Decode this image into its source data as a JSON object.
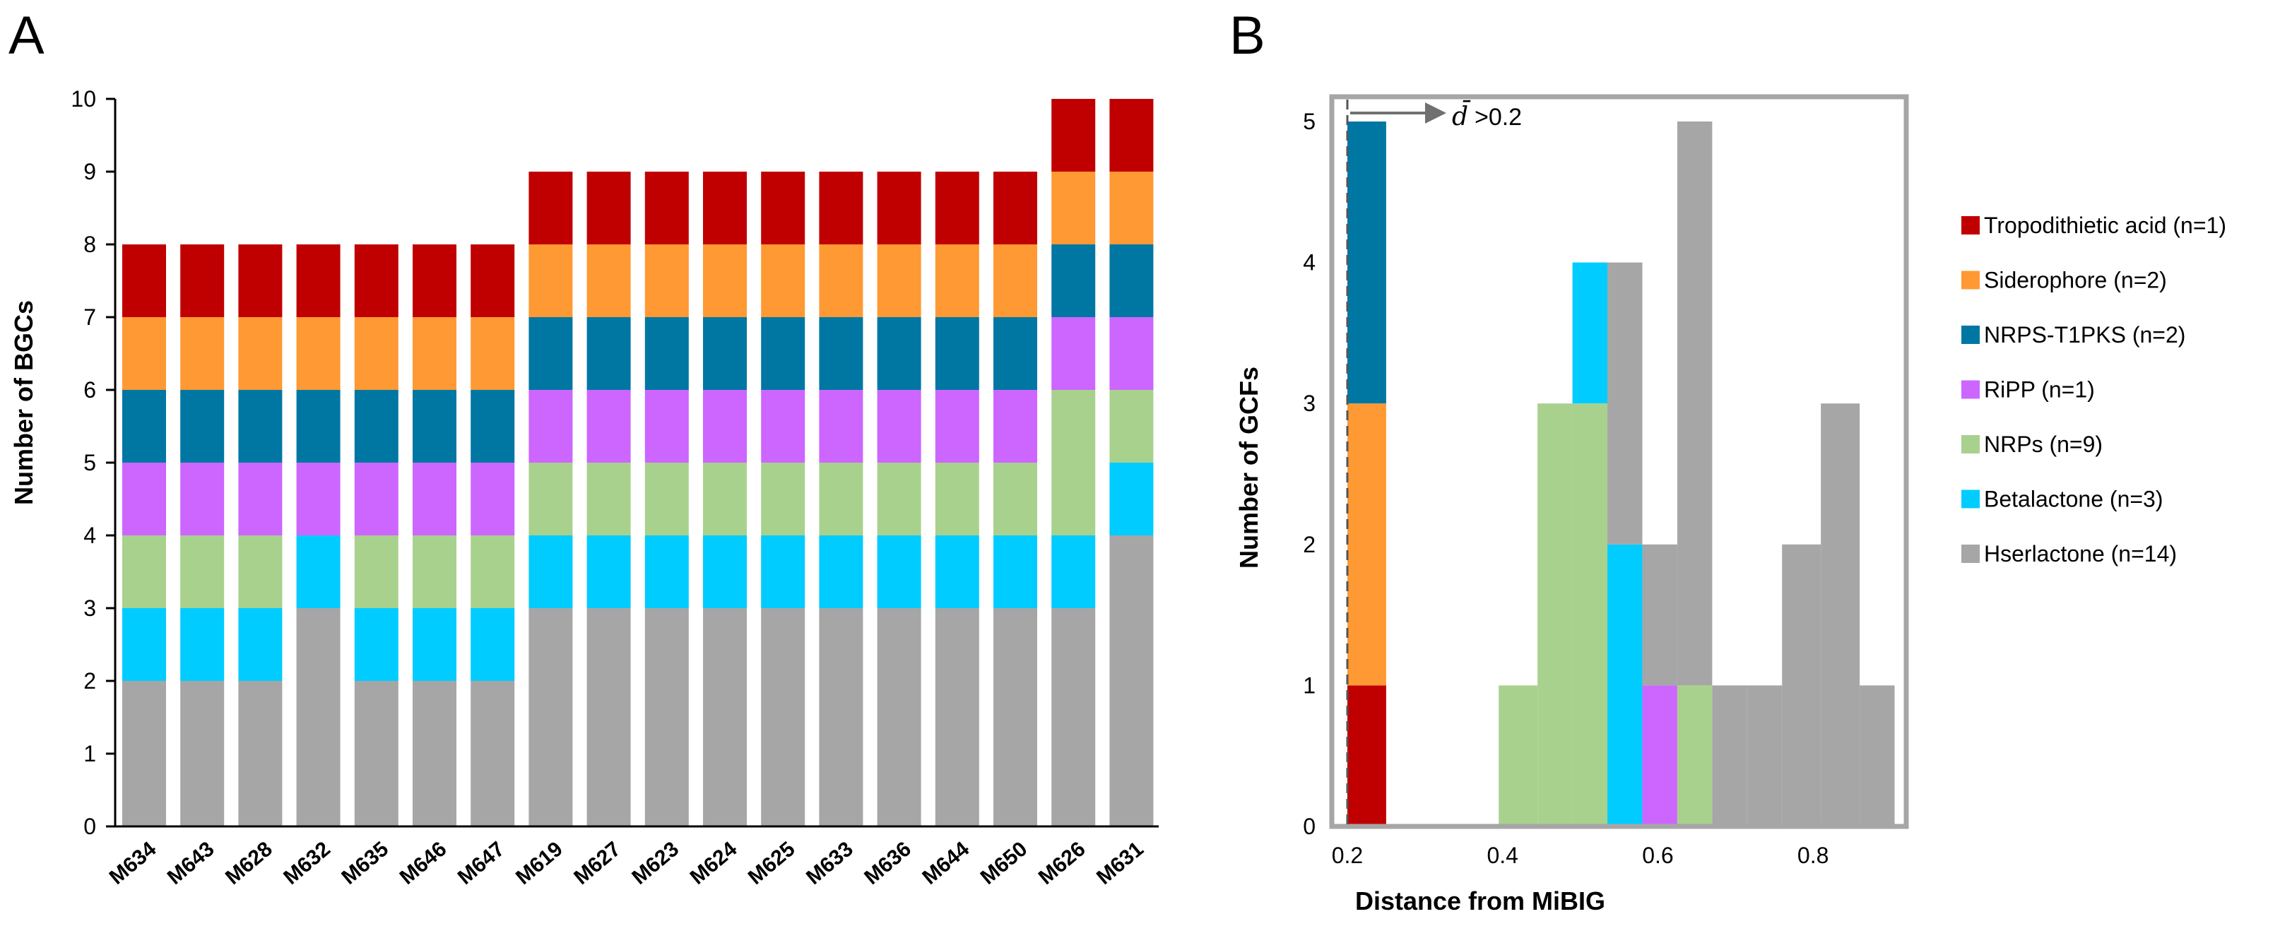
{
  "panels": {
    "a": "A",
    "b": "B"
  },
  "colors": {
    "Tropodithietic acid": "#c00000",
    "Siderophore": "#ff9933",
    "NRPS-T1PKS": "#0077a3",
    "RiPP": "#cc66ff",
    "NRPs": "#a9d18e",
    "Betalactone": "#00ccff",
    "Hserlactone": "#a6a6a6"
  },
  "legend": [
    {
      "key": "Tropodithietic acid",
      "label": "Tropodithietic acid (n=1)"
    },
    {
      "key": "Siderophore",
      "label": "Siderophore (n=2)"
    },
    {
      "key": "NRPS-T1PKS",
      "label": "NRPS-T1PKS (n=2)"
    },
    {
      "key": "RiPP",
      "label": "RiPP (n=1)"
    },
    {
      "key": "NRPs",
      "label": "NRPs (n=9)"
    },
    {
      "key": "Betalactone",
      "label": "Betalactone (n=3)"
    },
    {
      "key": "Hserlactone",
      "label": "Hserlactone (n=14)"
    }
  ],
  "chart_data": [
    {
      "type": "bar",
      "stacked": true,
      "panel": "A",
      "title": "",
      "xlabel": "",
      "ylabel": "Number of BGCs",
      "ylim": [
        0,
        10
      ],
      "yticks": [
        0,
        1,
        2,
        3,
        4,
        5,
        6,
        7,
        8,
        9,
        10
      ],
      "categories": [
        "M634",
        "M643",
        "M628",
        "M632",
        "M635",
        "M646",
        "M647",
        "M619",
        "M627",
        "M623",
        "M624",
        "M625",
        "M633",
        "M636",
        "M644",
        "M650",
        "M626",
        "M631"
      ],
      "series": [
        {
          "name": "Hserlactone",
          "values": [
            2,
            2,
            2,
            3,
            2,
            2,
            2,
            3,
            3,
            3,
            3,
            3,
            3,
            3,
            3,
            3,
            3,
            4
          ]
        },
        {
          "name": "Betalactone",
          "values": [
            1,
            1,
            1,
            1,
            1,
            1,
            1,
            1,
            1,
            1,
            1,
            1,
            1,
            1,
            1,
            1,
            1,
            1
          ]
        },
        {
          "name": "NRPs",
          "values": [
            1,
            1,
            1,
            0,
            1,
            1,
            1,
            1,
            1,
            1,
            1,
            1,
            1,
            1,
            1,
            1,
            2,
            1
          ]
        },
        {
          "name": "RiPP",
          "values": [
            1,
            1,
            1,
            1,
            1,
            1,
            1,
            1,
            1,
            1,
            1,
            1,
            1,
            1,
            1,
            1,
            1,
            1
          ]
        },
        {
          "name": "NRPS-T1PKS",
          "values": [
            1,
            1,
            1,
            1,
            1,
            1,
            1,
            1,
            1,
            1,
            1,
            1,
            1,
            1,
            1,
            1,
            1,
            1
          ]
        },
        {
          "name": "Siderophore",
          "values": [
            1,
            1,
            1,
            1,
            1,
            1,
            1,
            1,
            1,
            1,
            1,
            1,
            1,
            1,
            1,
            1,
            1,
            1
          ]
        },
        {
          "name": "Tropodithietic acid",
          "values": [
            1,
            1,
            1,
            1,
            1,
            1,
            1,
            1,
            1,
            1,
            1,
            1,
            1,
            1,
            1,
            1,
            1,
            1
          ]
        }
      ]
    },
    {
      "type": "bar",
      "subtype": "stacked histogram",
      "panel": "B",
      "title": "",
      "xlabel": "Distance from MiBIG",
      "ylabel": "Number of GCFs",
      "xlim": [
        0.18,
        0.92
      ],
      "ylim": [
        0,
        5
      ],
      "xticks": [
        0.2,
        0.4,
        0.6,
        0.8
      ],
      "yticks": [
        0,
        1,
        2,
        3,
        4,
        5
      ],
      "threshold": {
        "value": 0.2,
        "symbol": "d̄",
        "label": ">0.2"
      },
      "bins": [
        {
          "x0": 0.2,
          "x1": 0.25,
          "stack": [
            {
              "name": "Tropodithietic acid",
              "count": 1
            },
            {
              "name": "Siderophore",
              "count": 2
            },
            {
              "name": "NRPS-T1PKS",
              "count": 2
            }
          ]
        },
        {
          "x0": 0.395,
          "x1": 0.445,
          "stack": [
            {
              "name": "NRPs",
              "count": 1
            }
          ]
        },
        {
          "x0": 0.445,
          "x1": 0.49,
          "stack": [
            {
              "name": "NRPs",
              "count": 3
            }
          ]
        },
        {
          "x0": 0.49,
          "x1": 0.535,
          "stack": [
            {
              "name": "NRPs",
              "count": 3
            },
            {
              "name": "Betalactone",
              "count": 1
            }
          ]
        },
        {
          "x0": 0.535,
          "x1": 0.58,
          "stack": [
            {
              "name": "Betalactone",
              "count": 2
            },
            {
              "name": "Hserlactone",
              "count": 2
            }
          ]
        },
        {
          "x0": 0.58,
          "x1": 0.625,
          "stack": [
            {
              "name": "RiPP",
              "count": 1
            },
            {
              "name": "Hserlactone",
              "count": 1
            }
          ]
        },
        {
          "x0": 0.625,
          "x1": 0.67,
          "stack": [
            {
              "name": "NRPs",
              "count": 1
            },
            {
              "name": "Hserlactone",
              "count": 4
            }
          ]
        },
        {
          "x0": 0.67,
          "x1": 0.715,
          "stack": [
            {
              "name": "Hserlactone",
              "count": 1
            }
          ]
        },
        {
          "x0": 0.715,
          "x1": 0.76,
          "stack": [
            {
              "name": "Hserlactone",
              "count": 1
            }
          ]
        },
        {
          "x0": 0.76,
          "x1": 0.81,
          "stack": [
            {
              "name": "Hserlactone",
              "count": 2
            }
          ]
        },
        {
          "x0": 0.81,
          "x1": 0.86,
          "stack": [
            {
              "name": "Hserlactone",
              "count": 3
            }
          ]
        },
        {
          "x0": 0.86,
          "x1": 0.905,
          "stack": [
            {
              "name": "Hserlactone",
              "count": 1
            }
          ]
        }
      ]
    }
  ]
}
